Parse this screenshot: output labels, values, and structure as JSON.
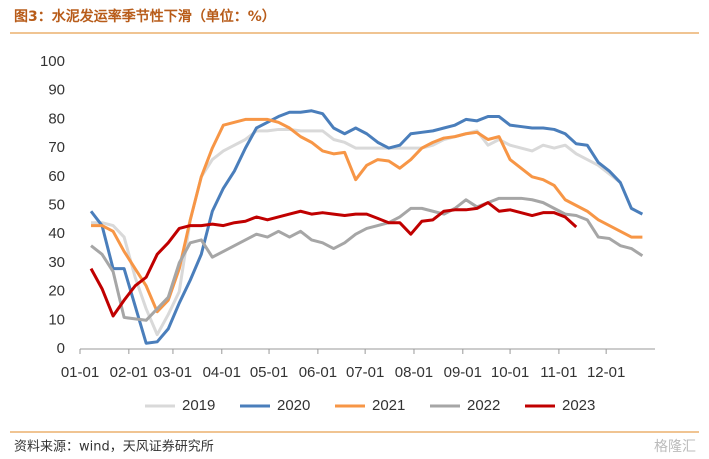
{
  "chart_data": {
    "type": "line",
    "title": "图3：水泥发运率季节性下滑（单位：%）",
    "source": "资料来源：wind，天风证券研究所",
    "watermark": "格隆汇",
    "x": [
      0,
      7,
      14,
      21,
      28,
      35,
      42,
      49,
      56,
      63,
      70,
      77,
      84,
      91,
      98,
      105,
      112,
      119,
      126,
      133,
      140,
      147,
      154,
      161,
      168,
      175,
      182,
      189,
      196,
      203,
      210,
      217,
      224,
      231,
      238,
      245,
      252,
      259,
      266,
      273,
      280,
      287,
      294,
      301,
      308,
      315,
      322,
      329,
      336,
      343,
      350,
      357
    ],
    "xlim": [
      0,
      365
    ],
    "xticks": [
      {
        "value": 0,
        "label": "01-01"
      },
      {
        "value": 31,
        "label": "02-01"
      },
      {
        "value": 59,
        "label": "03-01"
      },
      {
        "value": 90,
        "label": "04-01"
      },
      {
        "value": 120,
        "label": "05-01"
      },
      {
        "value": 151,
        "label": "06-01"
      },
      {
        "value": 181,
        "label": "07-01"
      },
      {
        "value": 212,
        "label": "08-01"
      },
      {
        "value": 243,
        "label": "09-01"
      },
      {
        "value": 273,
        "label": "10-01"
      },
      {
        "value": 304,
        "label": "11-01"
      },
      {
        "value": 334,
        "label": "12-01"
      }
    ],
    "ylim": [
      0,
      100
    ],
    "yticks": [
      0,
      10,
      20,
      30,
      40,
      50,
      60,
      70,
      80,
      90,
      100
    ],
    "legend": "bottom",
    "series": [
      {
        "name": "2019",
        "color": "#d9d9d9",
        "values": [
          null,
          44,
          44,
          43,
          39,
          25,
          14,
          5,
          12,
          20,
          45,
          60,
          66,
          69,
          71,
          73,
          76,
          76,
          76.5,
          76.5,
          76,
          76,
          76,
          73,
          72,
          70,
          70,
          70,
          70,
          70,
          70,
          70,
          71,
          73,
          74,
          75,
          76,
          71,
          73,
          71,
          70,
          69,
          71,
          70,
          71,
          68,
          66,
          64,
          61,
          58,
          null,
          null
        ]
      },
      {
        "name": "2020",
        "color": "#4a7ebb",
        "values": [
          null,
          48,
          43,
          28,
          28,
          15,
          2,
          2.5,
          7,
          16,
          24,
          33,
          48,
          56,
          62,
          70,
          77,
          79,
          81,
          82.5,
          82.5,
          83,
          82,
          77,
          75,
          77,
          75,
          72,
          70,
          71,
          75,
          75.5,
          76,
          77,
          78,
          80,
          79.5,
          81,
          81,
          78,
          77.5,
          77,
          77,
          76.5,
          75,
          71.5,
          71,
          65,
          62,
          58,
          49,
          47
        ]
      },
      {
        "name": "2021",
        "color": "#f79646",
        "values": [
          null,
          43,
          43,
          41,
          34,
          28,
          22,
          13,
          17,
          28,
          45,
          60,
          70,
          78,
          79,
          80,
          80,
          80,
          79,
          77,
          74,
          72,
          69,
          68,
          68.5,
          59,
          64,
          66,
          65.5,
          63,
          66,
          70,
          72,
          73.5,
          74,
          75,
          75.5,
          73,
          74,
          66,
          63,
          60,
          59,
          57,
          52,
          50,
          48,
          45,
          43,
          41,
          39,
          39
        ]
      },
      {
        "name": "2022",
        "color": "#a6a6a6",
        "values": [
          null,
          36,
          33,
          27,
          11,
          10.5,
          10,
          14,
          18,
          30,
          37,
          38,
          32,
          34,
          36,
          38,
          40,
          39,
          41,
          39,
          41,
          38,
          37,
          35,
          37,
          40,
          42,
          43,
          44,
          46,
          49,
          49,
          48,
          47,
          49,
          52,
          49.5,
          51,
          52.5,
          52.5,
          52.5,
          52,
          51,
          49,
          47,
          46.5,
          45,
          39,
          38.5,
          36,
          35,
          32.5
        ]
      },
      {
        "name": "2023",
        "color": "#c00000",
        "values": [
          null,
          28,
          21,
          11.5,
          17,
          22,
          25,
          33,
          37,
          42,
          43,
          43,
          43.5,
          43,
          44,
          44.5,
          46,
          45,
          46,
          47,
          48,
          47,
          47.5,
          47,
          46.5,
          47,
          47,
          45.5,
          44,
          44,
          40,
          44.5,
          45,
          48,
          48.5,
          48.5,
          49,
          51,
          48,
          48.5,
          47.5,
          46.5,
          47.5,
          47.5,
          46,
          42.5,
          null,
          null,
          null,
          null,
          null,
          null
        ]
      }
    ]
  }
}
